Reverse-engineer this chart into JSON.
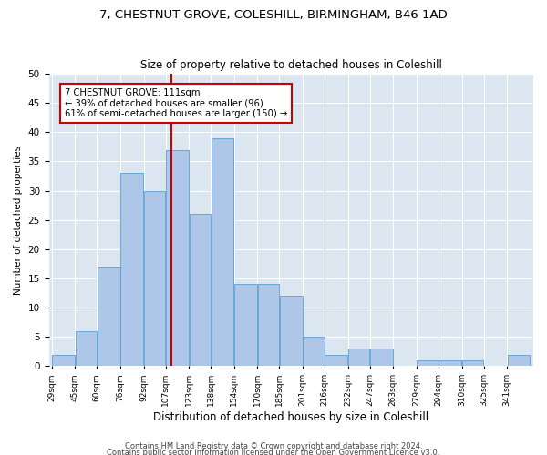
{
  "title1": "7, CHESTNUT GROVE, COLESHILL, BIRMINGHAM, B46 1AD",
  "title2": "Size of property relative to detached houses in Coleshill",
  "xlabel": "Distribution of detached houses by size in Coleshill",
  "ylabel": "Number of detached properties",
  "bin_labels": [
    "29sqm",
    "45sqm",
    "60sqm",
    "76sqm",
    "92sqm",
    "107sqm",
    "123sqm",
    "138sqm",
    "154sqm",
    "170sqm",
    "185sqm",
    "201sqm",
    "216sqm",
    "232sqm",
    "247sqm",
    "263sqm",
    "279sqm",
    "294sqm",
    "310sqm",
    "325sqm",
    "341sqm"
  ],
  "bin_edges": [
    29,
    45,
    60,
    76,
    92,
    107,
    123,
    138,
    154,
    170,
    185,
    201,
    216,
    232,
    247,
    263,
    279,
    294,
    310,
    325,
    341,
    357
  ],
  "bar_heights": [
    2,
    6,
    17,
    33,
    30,
    37,
    26,
    39,
    14,
    14,
    12,
    5,
    2,
    3,
    3,
    0,
    1,
    1,
    1,
    0,
    2
  ],
  "bar_color": "#aec6e8",
  "bar_edge_color": "#5a9fd4",
  "vline_x": 111,
  "vline_color": "#cc0000",
  "annotation_text": "7 CHESTNUT GROVE: 111sqm\n← 39% of detached houses are smaller (96)\n61% of semi-detached houses are larger (150) →",
  "annotation_box_color": "#ffffff",
  "annotation_box_edge": "#cc0000",
  "bg_color": "#dce6f0",
  "ylim": [
    0,
    50
  ],
  "yticks": [
    0,
    5,
    10,
    15,
    20,
    25,
    30,
    35,
    40,
    45,
    50
  ],
  "footer1": "Contains HM Land Registry data © Crown copyright and database right 2024.",
  "footer2": "Contains public sector information licensed under the Open Government Licence v3.0."
}
